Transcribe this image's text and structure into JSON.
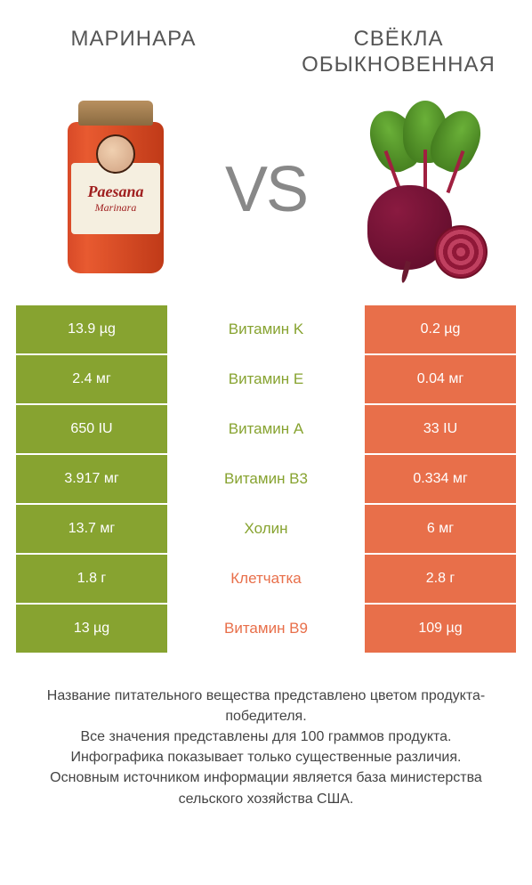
{
  "header": {
    "left_title": "МАРИНАРА",
    "right_title": "СВЁКЛА ОБЫКНОВЕННАЯ",
    "vs": "VS",
    "jar_brand": "Paesana",
    "jar_sub": "Marinara"
  },
  "colors": {
    "green": "#87a330",
    "orange": "#e86f4a"
  },
  "rows": [
    {
      "left": "13.9 µg",
      "label": "Витамин K",
      "right": "0.2 µg",
      "winner": "left"
    },
    {
      "left": "2.4 мг",
      "label": "Витамин E",
      "right": "0.04 мг",
      "winner": "left"
    },
    {
      "left": "650 IU",
      "label": "Витамин A",
      "right": "33 IU",
      "winner": "left"
    },
    {
      "left": "3.917 мг",
      "label": "Витамин B3",
      "right": "0.334 мг",
      "winner": "left"
    },
    {
      "left": "13.7 мг",
      "label": "Холин",
      "right": "6 мг",
      "winner": "left"
    },
    {
      "left": "1.8 г",
      "label": "Клетчатка",
      "right": "2.8 г",
      "winner": "right"
    },
    {
      "left": "13 µg",
      "label": "Витамин B9",
      "right": "109 µg",
      "winner": "right"
    }
  ],
  "footer": {
    "line1": "Название питательного вещества представлено цветом продукта-победителя.",
    "line2": "Все значения представлены для 100 граммов продукта.",
    "line3": "Инфографика показывает только существенные различия.",
    "line4": "Основным источником информации является база министерства сельского хозяйства США."
  }
}
